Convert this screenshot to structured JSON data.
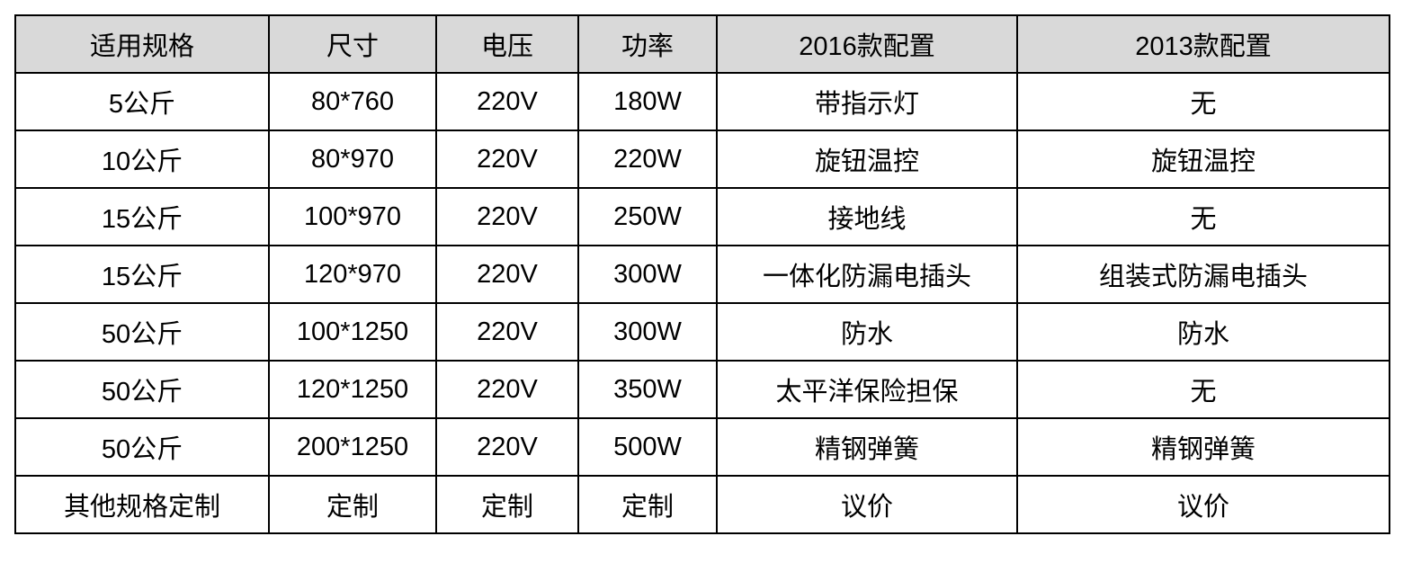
{
  "table": {
    "header": [
      "适用规格",
      "尺寸",
      "电压",
      "功率",
      "2016款配置",
      "2013款配置"
    ],
    "rows": [
      [
        "5公斤",
        "80*760",
        "220V",
        "180W",
        "带指示灯",
        "无"
      ],
      [
        "10公斤",
        "80*970",
        "220V",
        "220W",
        "旋钮温控",
        "旋钮温控"
      ],
      [
        "15公斤",
        "100*970",
        "220V",
        "250W",
        "接地线",
        "无"
      ],
      [
        "15公斤",
        "120*970",
        "220V",
        "300W",
        "一体化防漏电插头",
        "组装式防漏电插头"
      ],
      [
        "50公斤",
        "100*1250",
        "220V",
        "300W",
        "防水",
        "防水"
      ],
      [
        "50公斤",
        "120*1250",
        "220V",
        "350W",
        "太平洋保险担保",
        "无"
      ],
      [
        "50公斤",
        "200*1250",
        "220V",
        "500W",
        "精钢弹簧",
        "精钢弹簧"
      ],
      [
        "其他规格定制",
        "定制",
        "定制",
        "定制",
        "议价",
        "议价"
      ]
    ]
  }
}
